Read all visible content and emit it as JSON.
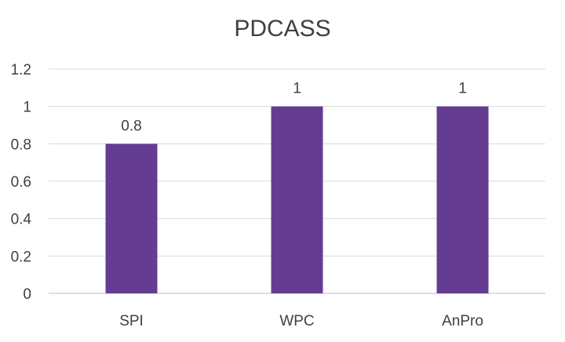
{
  "chart_data": {
    "type": "bar",
    "title": "PDCASS",
    "categories": [
      "SPI",
      "WPC",
      "AnPro"
    ],
    "values": [
      0.8,
      1,
      1
    ],
    "data_labels": [
      "0.8",
      "1",
      "1"
    ],
    "ylim": [
      0,
      1.2
    ],
    "yticks": [
      "0",
      "0.2",
      "0.4",
      "0.6",
      "0.8",
      "1",
      "1.2"
    ],
    "grid": true,
    "legend": "none",
    "bar_color": "#643D92"
  }
}
